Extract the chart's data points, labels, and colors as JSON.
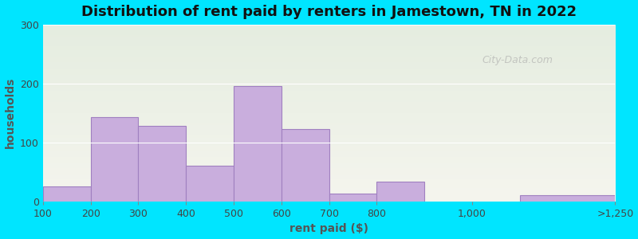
{
  "title": "Distribution of rent paid by renters in Jamestown, TN in 2022",
  "xlabel": "rent paid ($)",
  "ylabel": "households",
  "tick_labels": [
    "100",
    "200",
    "300",
    "400",
    "500",
    "600",
    "700",
    "800",
    "1,000",
    ">1,250"
  ],
  "bar_lefts": [
    0,
    1,
    2,
    3,
    4,
    5,
    6,
    7,
    8,
    10
  ],
  "bar_widths": [
    1,
    1,
    1,
    1,
    1,
    1,
    1,
    1,
    2,
    2
  ],
  "bar_values": [
    25,
    143,
    128,
    60,
    195,
    123,
    13,
    33,
    0,
    10
  ],
  "tick_positions": [
    0,
    1,
    2,
    3,
    4,
    5,
    6,
    7,
    9,
    12
  ],
  "bar_color": "#c9aedd",
  "bar_edge_color": "#a080c0",
  "ylim": [
    0,
    300
  ],
  "yticks": [
    0,
    100,
    200,
    300
  ],
  "bg_color_top": "#e5ede0",
  "bg_color_bottom": "#f5f5ee",
  "outer_background": "#00e5ff",
  "title_fontsize": 13,
  "axis_label_fontsize": 10,
  "tick_fontsize": 9,
  "watermark_text": "City-Data.com",
  "xlim": [
    0,
    12
  ]
}
